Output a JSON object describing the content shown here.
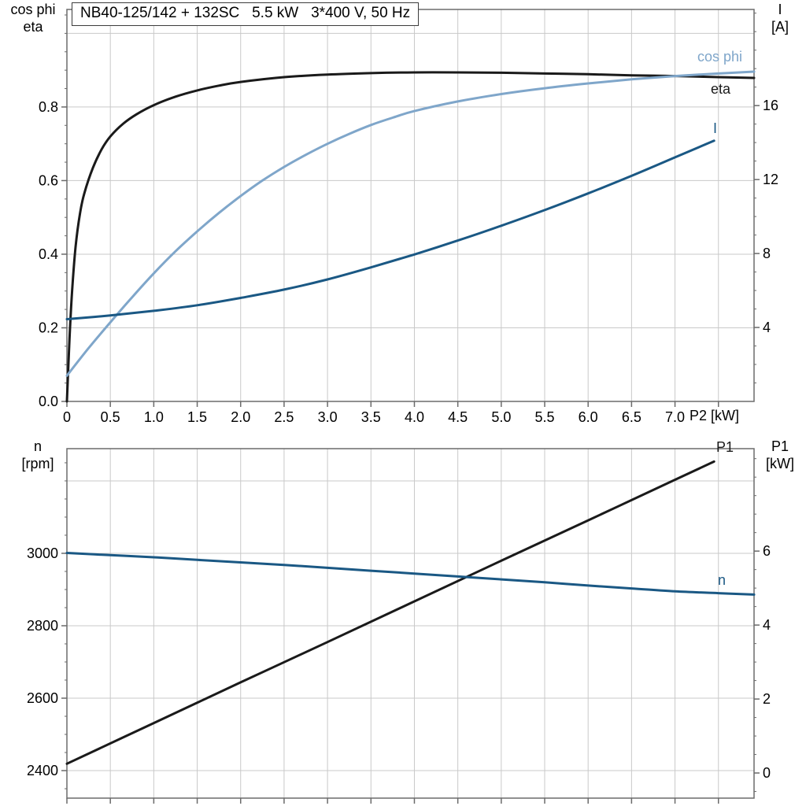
{
  "style": {
    "background": "#ffffff",
    "grid": "#c9c9c9",
    "axis": "#6b6b6b",
    "text": "#000000"
  },
  "chart_data": [
    {
      "type": "line",
      "title": "NB40-125/142 + 132SC   5.5 kW   3*400 V, 50 Hz",
      "x_axis": {
        "label": "P2 [kW]",
        "min": 0,
        "max": 7.91,
        "tick_step": 0.5,
        "tick_labels": [
          "0",
          "0.5",
          "1.0",
          "1.5",
          "2.0",
          "2.5",
          "3.0",
          "3.5",
          "4.0",
          "4.5",
          "5.0",
          "5.5",
          "6.0",
          "6.5",
          "7.0"
        ]
      },
      "y_left": {
        "header": [
          "cos phi",
          "eta"
        ],
        "min": 0,
        "max": 1.065,
        "tick_values": [
          0,
          0.2,
          0.4,
          0.6,
          0.8
        ],
        "tick_labels": [
          "0.0",
          "0.2",
          "0.4",
          "0.6",
          "0.8"
        ],
        "grid_values": [
          0.2,
          0.4,
          0.6,
          0.8,
          1.0
        ],
        "minor_step": 0.05
      },
      "y_right": {
        "header": [
          "I",
          "[A]"
        ],
        "min": 0,
        "max": 21.2,
        "tick_values": [
          4,
          8,
          12,
          16
        ],
        "tick_labels": [
          "4",
          "8",
          "12",
          "16"
        ],
        "minor_step": 1
      },
      "series": [
        {
          "name": "eta",
          "label": "eta",
          "axis": "left",
          "color": "#1a1a1a",
          "points": [
            [
              0,
              0
            ],
            [
              0.03,
              0.17
            ],
            [
              0.06,
              0.3
            ],
            [
              0.1,
              0.42
            ],
            [
              0.15,
              0.51
            ],
            [
              0.2,
              0.565
            ],
            [
              0.3,
              0.635
            ],
            [
              0.4,
              0.685
            ],
            [
              0.5,
              0.72
            ],
            [
              0.65,
              0.755
            ],
            [
              0.8,
              0.78
            ],
            [
              1,
              0.805
            ],
            [
              1.25,
              0.828
            ],
            [
              1.5,
              0.845
            ],
            [
              1.75,
              0.858
            ],
            [
              2,
              0.868
            ],
            [
              2.5,
              0.881
            ],
            [
              3,
              0.888
            ],
            [
              3.5,
              0.892
            ],
            [
              4,
              0.894
            ],
            [
              4.5,
              0.894
            ],
            [
              5,
              0.893
            ],
            [
              5.5,
              0.891
            ],
            [
              6,
              0.889
            ],
            [
              6.5,
              0.886
            ],
            [
              7,
              0.884
            ],
            [
              7.5,
              0.881
            ],
            [
              7.91,
              0.879
            ]
          ]
        },
        {
          "name": "cos_phi",
          "label": "cos phi",
          "axis": "left",
          "color": "#7fa6ca",
          "points": [
            [
              0,
              0.07
            ],
            [
              0.25,
              0.145
            ],
            [
              0.5,
              0.215
            ],
            [
              0.75,
              0.283
            ],
            [
              1,
              0.348
            ],
            [
              1.25,
              0.408
            ],
            [
              1.5,
              0.462
            ],
            [
              1.75,
              0.512
            ],
            [
              2,
              0.558
            ],
            [
              2.25,
              0.6
            ],
            [
              2.5,
              0.637
            ],
            [
              2.75,
              0.67
            ],
            [
              3,
              0.7
            ],
            [
              3.25,
              0.727
            ],
            [
              3.5,
              0.751
            ],
            [
              3.75,
              0.771
            ],
            [
              4,
              0.789
            ],
            [
              4.5,
              0.815
            ],
            [
              5,
              0.835
            ],
            [
              5.5,
              0.851
            ],
            [
              6,
              0.864
            ],
            [
              6.5,
              0.875
            ],
            [
              7,
              0.884
            ],
            [
              7.5,
              0.891
            ],
            [
              7.91,
              0.896
            ]
          ]
        },
        {
          "name": "current",
          "label": "I",
          "axis": "right",
          "color": "#1a5884",
          "points": [
            [
              0,
              4.45
            ],
            [
              0.5,
              4.65
            ],
            [
              1,
              4.9
            ],
            [
              1.5,
              5.2
            ],
            [
              2,
              5.6
            ],
            [
              2.5,
              6.05
            ],
            [
              3,
              6.6
            ],
            [
              3.5,
              7.25
            ],
            [
              4,
              7.95
            ],
            [
              4.5,
              8.7
            ],
            [
              5,
              9.5
            ],
            [
              5.5,
              10.35
            ],
            [
              6,
              11.25
            ],
            [
              6.5,
              12.2
            ],
            [
              7,
              13.2
            ],
            [
              7.45,
              14.1
            ]
          ]
        }
      ]
    },
    {
      "type": "line",
      "x_axis": {
        "min": 0,
        "max": 7.91,
        "tick_step": 0.5
      },
      "y_left": {
        "header": [
          "n",
          "[rpm]"
        ],
        "min": 2324,
        "max": 3289,
        "tick_values": [
          2400,
          2600,
          2800,
          3000
        ],
        "tick_labels": [
          "2400",
          "2600",
          "2800",
          "3000"
        ],
        "grid_values": [
          2400,
          2600,
          2800,
          3000,
          3200
        ],
        "minor_step": 50
      },
      "y_right": {
        "header": [
          "P1",
          "[kW]"
        ],
        "min": -0.68,
        "max": 8.77,
        "tick_values": [
          0,
          2,
          4,
          6
        ],
        "tick_labels": [
          "0",
          "2",
          "4",
          "6"
        ],
        "minor_step": 0.5
      },
      "series": [
        {
          "name": "P1",
          "label": "P1",
          "axis": "right",
          "color": "#1a1a1a",
          "points": [
            [
              0,
              0.25
            ],
            [
              1,
              1.35
            ],
            [
              2,
              2.45
            ],
            [
              3,
              3.54
            ],
            [
              4,
              4.64
            ],
            [
              5,
              5.74
            ],
            [
              6,
              6.83
            ],
            [
              7,
              7.93
            ],
            [
              7.45,
              8.42
            ]
          ]
        },
        {
          "name": "n",
          "label": "n",
          "axis": "left",
          "color": "#1a5884",
          "points": [
            [
              0,
              3001
            ],
            [
              0.5,
              2995
            ],
            [
              1,
              2989
            ],
            [
              1.5,
              2982
            ],
            [
              2,
              2975
            ],
            [
              2.5,
              2968
            ],
            [
              3,
              2960
            ],
            [
              3.5,
              2952
            ],
            [
              4,
              2944
            ],
            [
              4.5,
              2936
            ],
            [
              5,
              2928
            ],
            [
              5.5,
              2920
            ],
            [
              6,
              2911
            ],
            [
              6.5,
              2903
            ],
            [
              7,
              2895
            ],
            [
              7.5,
              2890
            ],
            [
              7.91,
              2886
            ]
          ]
        }
      ]
    }
  ]
}
